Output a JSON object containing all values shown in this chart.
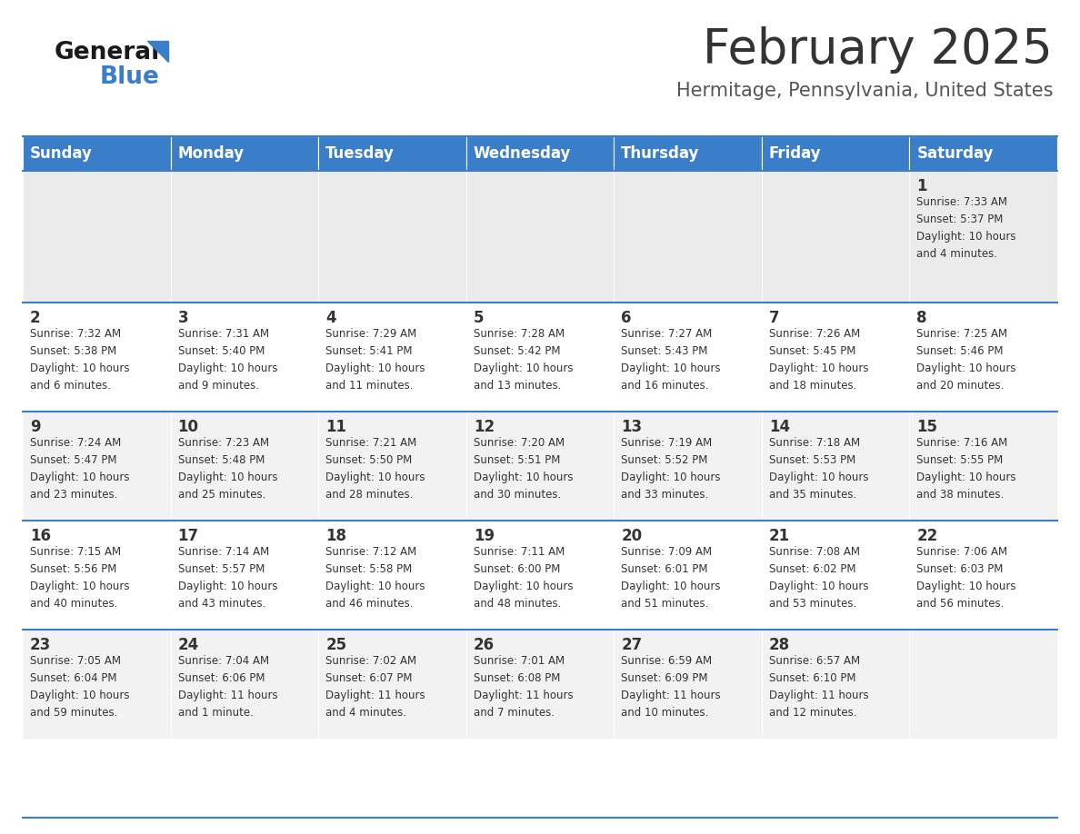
{
  "title": "February 2025",
  "subtitle": "Hermitage, Pennsylvania, United States",
  "header_color": "#3A7DC9",
  "header_text_color": "#FFFFFF",
  "cell_bg_week1": "#EBEBEB",
  "cell_bg_even": "#F2F2F2",
  "cell_bg_odd": "#FFFFFF",
  "separator_color": "#3A7DC9",
  "title_color": "#333333",
  "subtitle_color": "#555555",
  "text_color": "#333333",
  "day_names": [
    "Sunday",
    "Monday",
    "Tuesday",
    "Wednesday",
    "Thursday",
    "Friday",
    "Saturday"
  ],
  "weeks": [
    [
      {
        "day": null,
        "info": null
      },
      {
        "day": null,
        "info": null
      },
      {
        "day": null,
        "info": null
      },
      {
        "day": null,
        "info": null
      },
      {
        "day": null,
        "info": null
      },
      {
        "day": null,
        "info": null
      },
      {
        "day": 1,
        "info": "Sunrise: 7:33 AM\nSunset: 5:37 PM\nDaylight: 10 hours\nand 4 minutes."
      }
    ],
    [
      {
        "day": 2,
        "info": "Sunrise: 7:32 AM\nSunset: 5:38 PM\nDaylight: 10 hours\nand 6 minutes."
      },
      {
        "day": 3,
        "info": "Sunrise: 7:31 AM\nSunset: 5:40 PM\nDaylight: 10 hours\nand 9 minutes."
      },
      {
        "day": 4,
        "info": "Sunrise: 7:29 AM\nSunset: 5:41 PM\nDaylight: 10 hours\nand 11 minutes."
      },
      {
        "day": 5,
        "info": "Sunrise: 7:28 AM\nSunset: 5:42 PM\nDaylight: 10 hours\nand 13 minutes."
      },
      {
        "day": 6,
        "info": "Sunrise: 7:27 AM\nSunset: 5:43 PM\nDaylight: 10 hours\nand 16 minutes."
      },
      {
        "day": 7,
        "info": "Sunrise: 7:26 AM\nSunset: 5:45 PM\nDaylight: 10 hours\nand 18 minutes."
      },
      {
        "day": 8,
        "info": "Sunrise: 7:25 AM\nSunset: 5:46 PM\nDaylight: 10 hours\nand 20 minutes."
      }
    ],
    [
      {
        "day": 9,
        "info": "Sunrise: 7:24 AM\nSunset: 5:47 PM\nDaylight: 10 hours\nand 23 minutes."
      },
      {
        "day": 10,
        "info": "Sunrise: 7:23 AM\nSunset: 5:48 PM\nDaylight: 10 hours\nand 25 minutes."
      },
      {
        "day": 11,
        "info": "Sunrise: 7:21 AM\nSunset: 5:50 PM\nDaylight: 10 hours\nand 28 minutes."
      },
      {
        "day": 12,
        "info": "Sunrise: 7:20 AM\nSunset: 5:51 PM\nDaylight: 10 hours\nand 30 minutes."
      },
      {
        "day": 13,
        "info": "Sunrise: 7:19 AM\nSunset: 5:52 PM\nDaylight: 10 hours\nand 33 minutes."
      },
      {
        "day": 14,
        "info": "Sunrise: 7:18 AM\nSunset: 5:53 PM\nDaylight: 10 hours\nand 35 minutes."
      },
      {
        "day": 15,
        "info": "Sunrise: 7:16 AM\nSunset: 5:55 PM\nDaylight: 10 hours\nand 38 minutes."
      }
    ],
    [
      {
        "day": 16,
        "info": "Sunrise: 7:15 AM\nSunset: 5:56 PM\nDaylight: 10 hours\nand 40 minutes."
      },
      {
        "day": 17,
        "info": "Sunrise: 7:14 AM\nSunset: 5:57 PM\nDaylight: 10 hours\nand 43 minutes."
      },
      {
        "day": 18,
        "info": "Sunrise: 7:12 AM\nSunset: 5:58 PM\nDaylight: 10 hours\nand 46 minutes."
      },
      {
        "day": 19,
        "info": "Sunrise: 7:11 AM\nSunset: 6:00 PM\nDaylight: 10 hours\nand 48 minutes."
      },
      {
        "day": 20,
        "info": "Sunrise: 7:09 AM\nSunset: 6:01 PM\nDaylight: 10 hours\nand 51 minutes."
      },
      {
        "day": 21,
        "info": "Sunrise: 7:08 AM\nSunset: 6:02 PM\nDaylight: 10 hours\nand 53 minutes."
      },
      {
        "day": 22,
        "info": "Sunrise: 7:06 AM\nSunset: 6:03 PM\nDaylight: 10 hours\nand 56 minutes."
      }
    ],
    [
      {
        "day": 23,
        "info": "Sunrise: 7:05 AM\nSunset: 6:04 PM\nDaylight: 10 hours\nand 59 minutes."
      },
      {
        "day": 24,
        "info": "Sunrise: 7:04 AM\nSunset: 6:06 PM\nDaylight: 11 hours\nand 1 minute."
      },
      {
        "day": 25,
        "info": "Sunrise: 7:02 AM\nSunset: 6:07 PM\nDaylight: 11 hours\nand 4 minutes."
      },
      {
        "day": 26,
        "info": "Sunrise: 7:01 AM\nSunset: 6:08 PM\nDaylight: 11 hours\nand 7 minutes."
      },
      {
        "day": 27,
        "info": "Sunrise: 6:59 AM\nSunset: 6:09 PM\nDaylight: 11 hours\nand 10 minutes."
      },
      {
        "day": 28,
        "info": "Sunrise: 6:57 AM\nSunset: 6:10 PM\nDaylight: 11 hours\nand 12 minutes."
      },
      {
        "day": null,
        "info": null
      }
    ]
  ],
  "logo_text_general": "General",
  "logo_text_blue": "Blue",
  "logo_color_general": "#1a1a1a",
  "logo_color_blue": "#3A7DC9",
  "logo_triangle_color": "#3A7DC9"
}
